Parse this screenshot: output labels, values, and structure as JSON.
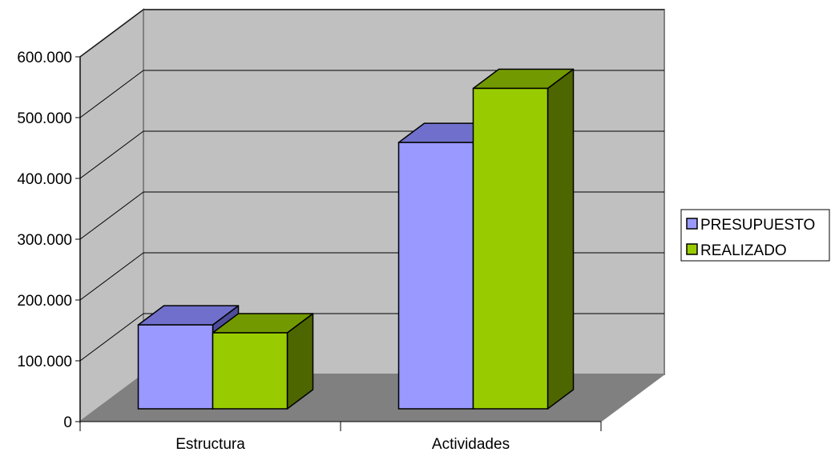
{
  "chart_data": {
    "type": "bar",
    "title": "",
    "xlabel": "",
    "ylabel": "",
    "categories": [
      "Estructura",
      "Actividades"
    ],
    "series": [
      {
        "name": "PRESUPUESTO",
        "values": [
          138000,
          438000
        ]
      },
      {
        "name": "REALIZADO",
        "values": [
          125000,
          527000
        ]
      }
    ],
    "ylim": [
      0,
      600000
    ],
    "y_ticks": [
      {
        "value": 0,
        "label": "0"
      },
      {
        "value": 100000,
        "label": "100.000"
      },
      {
        "value": 200000,
        "label": "200.000"
      },
      {
        "value": 300000,
        "label": "300.000"
      },
      {
        "value": 400000,
        "label": "400.000"
      },
      {
        "value": 500000,
        "label": "500.000"
      },
      {
        "value": 600000,
        "label": "600.000"
      }
    ],
    "grid": true,
    "three_d": true,
    "legend_position": "right",
    "colors": {
      "PRESUPUESTO": {
        "front": "#9999FF",
        "top": "#7070CC",
        "side": "#4D4D99"
      },
      "REALIZADO": {
        "front": "#99CC00",
        "top": "#739900",
        "side": "#4D6600"
      },
      "back_wall": "#C0C0C0",
      "side_wall": "#C0C0C0",
      "floor": "#808080",
      "gridline": "#000000"
    }
  }
}
